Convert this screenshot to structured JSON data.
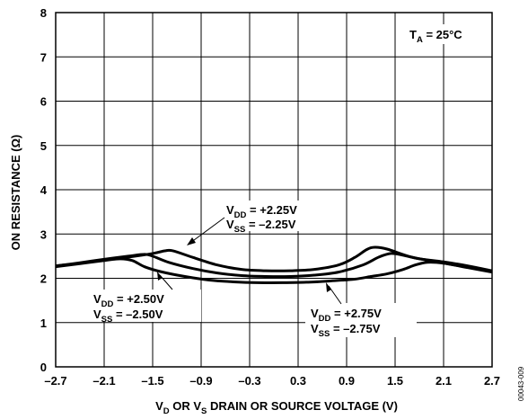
{
  "chart_data": {
    "type": "line",
    "title": "",
    "x_range": [
      -2.7,
      2.7
    ],
    "y_range": [
      0,
      8
    ],
    "grid": true,
    "x_ticks": [
      -2.7,
      -2.1,
      -1.5,
      -0.9,
      -0.3,
      0.3,
      0.9,
      1.5,
      2.1,
      2.7
    ],
    "y_ticks": [
      0,
      1,
      2,
      3,
      4,
      5,
      6,
      7,
      8
    ],
    "x_tick_labels": [
      "–2.7",
      "–2.1",
      "–1.5",
      "–0.9",
      "–0.3",
      "0.3",
      "0.9",
      "1.5",
      "2.1",
      "2.7"
    ],
    "y_tick_labels": [
      "0",
      "1",
      "2",
      "3",
      "4",
      "5",
      "6",
      "7",
      "8"
    ],
    "xlabel": {
      "pre": "V",
      "sub1": "D",
      "mid": " OR V",
      "sub2": "S",
      "post": " DRAIN OR SOURCE VOLTAGE (V)"
    },
    "ylabel": "ON RESISTANCE (Ω)",
    "condition": {
      "pre": "T",
      "sub": "A",
      "post": " = 25°C"
    },
    "series": [
      {
        "label_vdd": {
          "v": "V",
          "sub": "DD",
          "val": " = +2.25V"
        },
        "label_vss": {
          "v": "V",
          "sub": "SS",
          "val": " = –2.25V"
        },
        "x": [
          -2.7,
          -2.4,
          -2.1,
          -1.8,
          -1.5,
          -1.35,
          -1.25,
          -1.0,
          -0.7,
          -0.4,
          -0.1,
          0.2,
          0.5,
          0.8,
          1.0,
          1.15,
          1.25,
          1.4,
          1.7,
          2.0,
          2.3,
          2.7
        ],
        "y": [
          2.28,
          2.34,
          2.42,
          2.48,
          2.56,
          2.62,
          2.62,
          2.47,
          2.3,
          2.2,
          2.17,
          2.17,
          2.2,
          2.3,
          2.47,
          2.65,
          2.7,
          2.66,
          2.48,
          2.38,
          2.28,
          2.15
        ]
      },
      {
        "label_vdd": {
          "v": "V",
          "sub": "DD",
          "val": " = +2.50V"
        },
        "label_vss": {
          "v": "V",
          "sub": "SS",
          "val": " = –2.50V"
        },
        "x": [
          -2.7,
          -2.4,
          -2.1,
          -1.8,
          -1.6,
          -1.5,
          -1.3,
          -1.0,
          -0.7,
          -0.4,
          -0.1,
          0.2,
          0.5,
          0.8,
          1.1,
          1.3,
          1.45,
          1.6,
          1.8,
          2.1,
          2.4,
          2.7
        ],
        "y": [
          2.28,
          2.35,
          2.43,
          2.5,
          2.54,
          2.5,
          2.36,
          2.22,
          2.12,
          2.06,
          2.04,
          2.04,
          2.07,
          2.14,
          2.3,
          2.48,
          2.56,
          2.52,
          2.44,
          2.37,
          2.28,
          2.17
        ]
      },
      {
        "label_vdd": {
          "v": "V",
          "sub": "DD",
          "val": " = +2.75V"
        },
        "label_vss": {
          "v": "V",
          "sub": "SS",
          "val": " = –2.75V"
        },
        "x": [
          -2.7,
          -2.4,
          -2.1,
          -1.9,
          -1.75,
          -1.6,
          -1.4,
          -1.1,
          -0.8,
          -0.5,
          -0.2,
          0.1,
          0.4,
          0.7,
          1.0,
          1.2,
          1.4,
          1.6,
          1.75,
          1.9,
          2.1,
          2.4,
          2.7
        ],
        "y": [
          2.26,
          2.33,
          2.4,
          2.44,
          2.4,
          2.26,
          2.15,
          2.04,
          1.96,
          1.92,
          1.9,
          1.9,
          1.91,
          1.94,
          1.98,
          2.04,
          2.1,
          2.2,
          2.3,
          2.36,
          2.34,
          2.24,
          2.14
        ]
      }
    ]
  },
  "figure_id": "00043-009"
}
